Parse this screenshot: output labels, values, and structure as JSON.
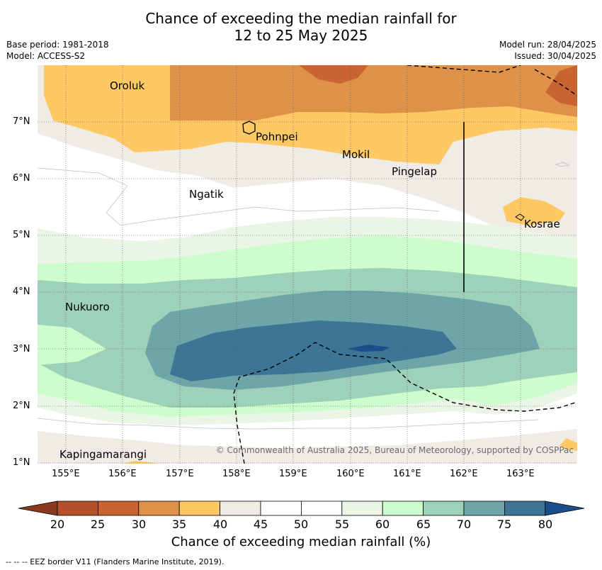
{
  "title": {
    "line1": "Chance of exceeding the median rainfall for",
    "line2": "12 to 25 May 2025"
  },
  "meta": {
    "base_period": "Base period: 1981-2018",
    "model": "Model: ACCESS-S2",
    "model_run": "Model run: 28/04/2025",
    "issued": "Issued: 30/04/2025"
  },
  "axes": {
    "lon_labels": [
      "155°E",
      "156°E",
      "157°E",
      "158°E",
      "159°E",
      "160°E",
      "161°E",
      "162°E",
      "163°E"
    ],
    "lat_labels": [
      "7°N",
      "6°N",
      "5°N",
      "4°N",
      "3°N",
      "2°N",
      "1°N"
    ]
  },
  "places": [
    {
      "name": "Oroluk"
    },
    {
      "name": "Pohnpei"
    },
    {
      "name": "Mokil"
    },
    {
      "name": "Pingelap"
    },
    {
      "name": "Ngatik"
    },
    {
      "name": "Kosrae"
    },
    {
      "name": "Nukuoro"
    },
    {
      "name": "Kapingamarangi"
    }
  ],
  "copyright": "© Commonwealth of Australia 2025, Bureau of Meteorology, supported by COSPPac",
  "colorbar": {
    "ticks": [
      "20",
      "25",
      "30",
      "35",
      "40",
      "45",
      "50",
      "55",
      "60",
      "65",
      "70",
      "75",
      "80"
    ],
    "colors": [
      "#b3502a",
      "#c96432",
      "#de9148",
      "#fec964",
      "#efebe5",
      "#ffffff",
      "#ffffff",
      "#eaf5e6",
      "#cdfdcd",
      "#9ed1b9",
      "#6ea5a8",
      "#3c7596"
    ],
    "under_color": "#8c3a1e",
    "over_color": "#1a4e8a",
    "label": "Chance of exceeding median rainfall (%)"
  },
  "footnote": "--  --  -- EEZ border V11 (Flanders Marine Institute, 2019)."
}
